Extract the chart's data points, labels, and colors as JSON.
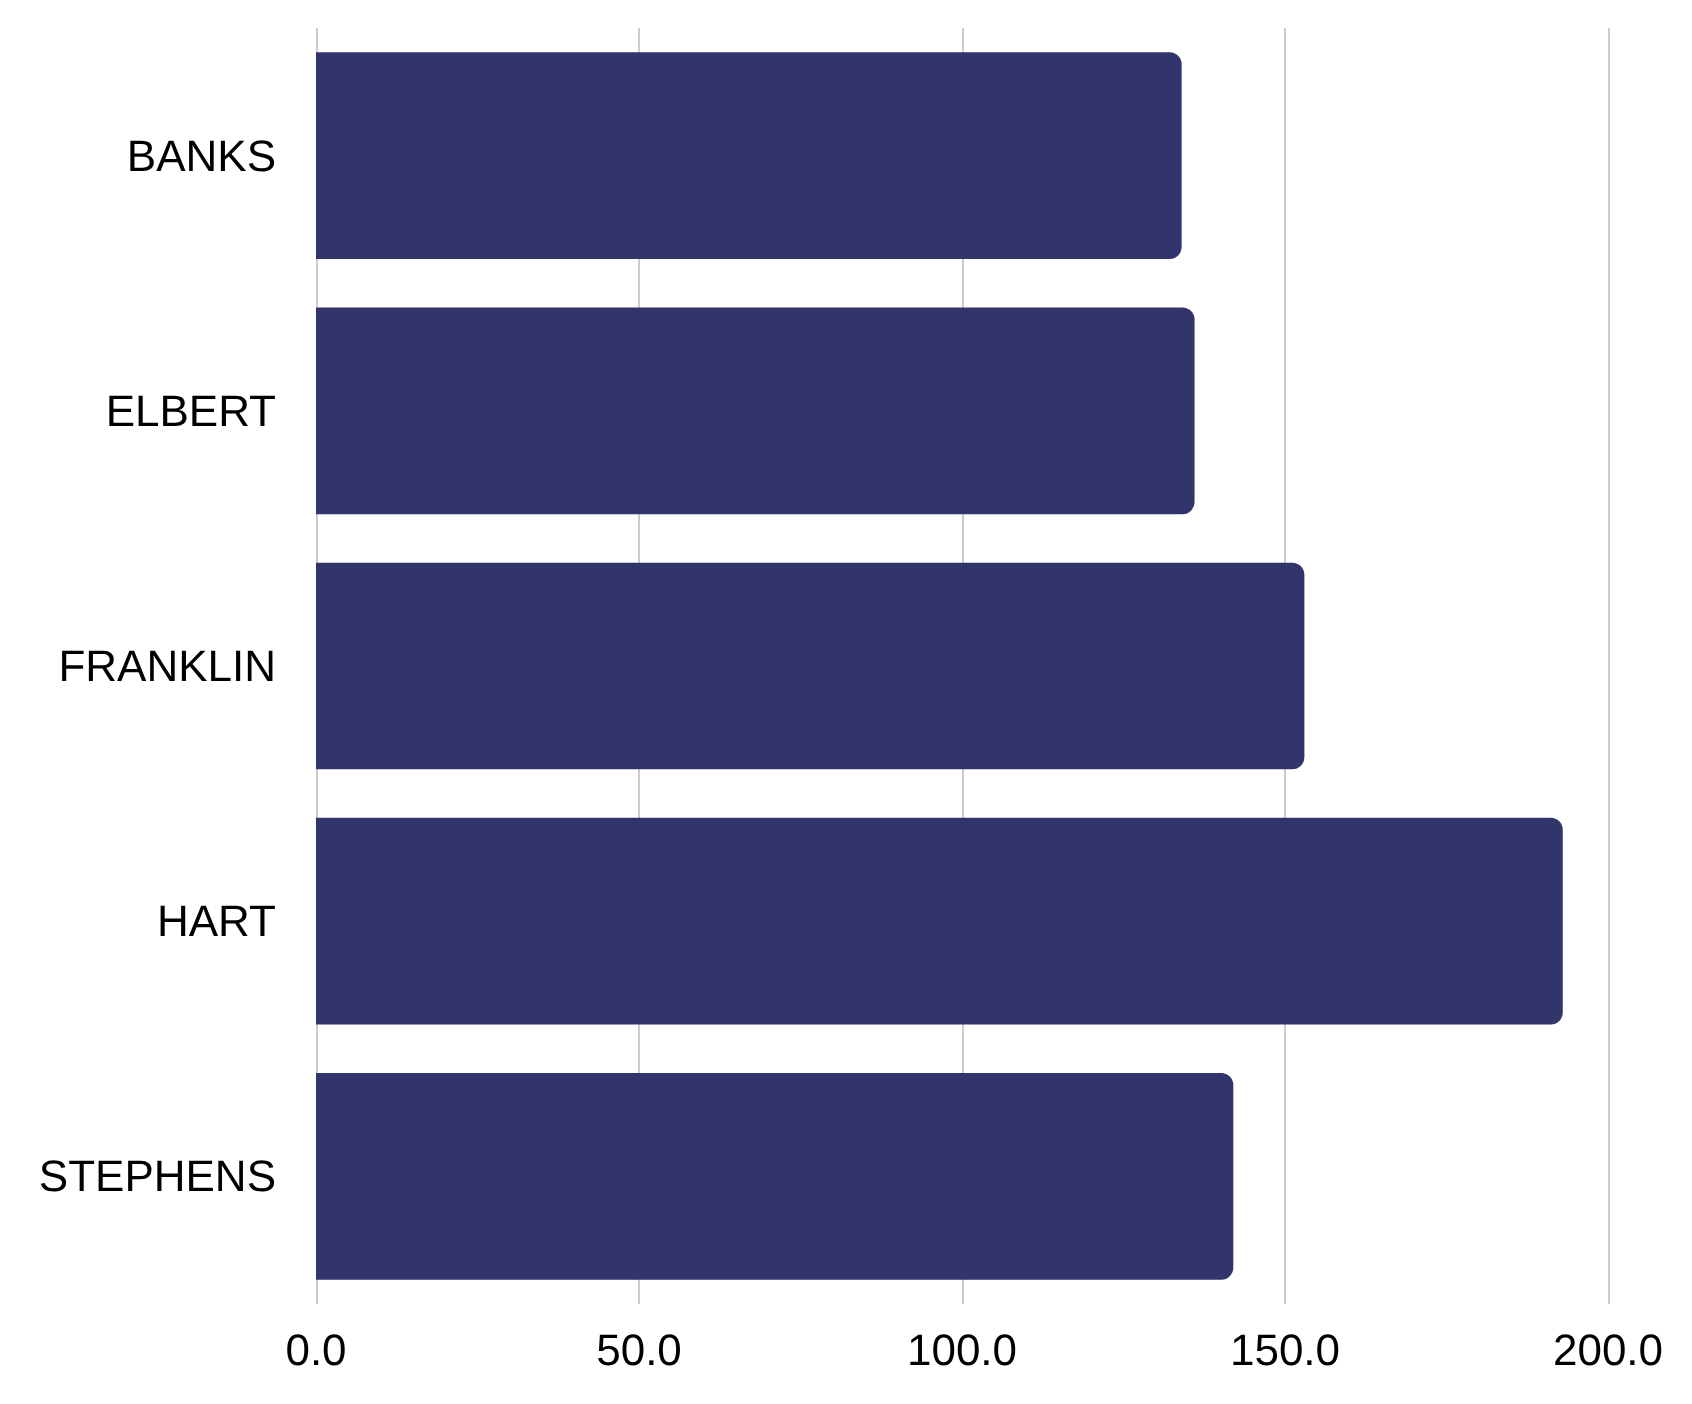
{
  "chart_data": {
    "type": "bar",
    "orientation": "horizontal",
    "categories": [
      "BANKS",
      "ELBERT",
      "FRANKLIN",
      "HART",
      "STEPHENS"
    ],
    "values": [
      134,
      136,
      153,
      193,
      142
    ],
    "color": "#31356b",
    "xlim": [
      0,
      200
    ],
    "xticks": [
      {
        "value": 0,
        "label": "0.0"
      },
      {
        "value": 50,
        "label": "50.0"
      },
      {
        "value": 100,
        "label": "100.0"
      },
      {
        "value": 150,
        "label": "150.0"
      },
      {
        "value": 200,
        "label": "200.0"
      }
    ],
    "grid": "x"
  }
}
